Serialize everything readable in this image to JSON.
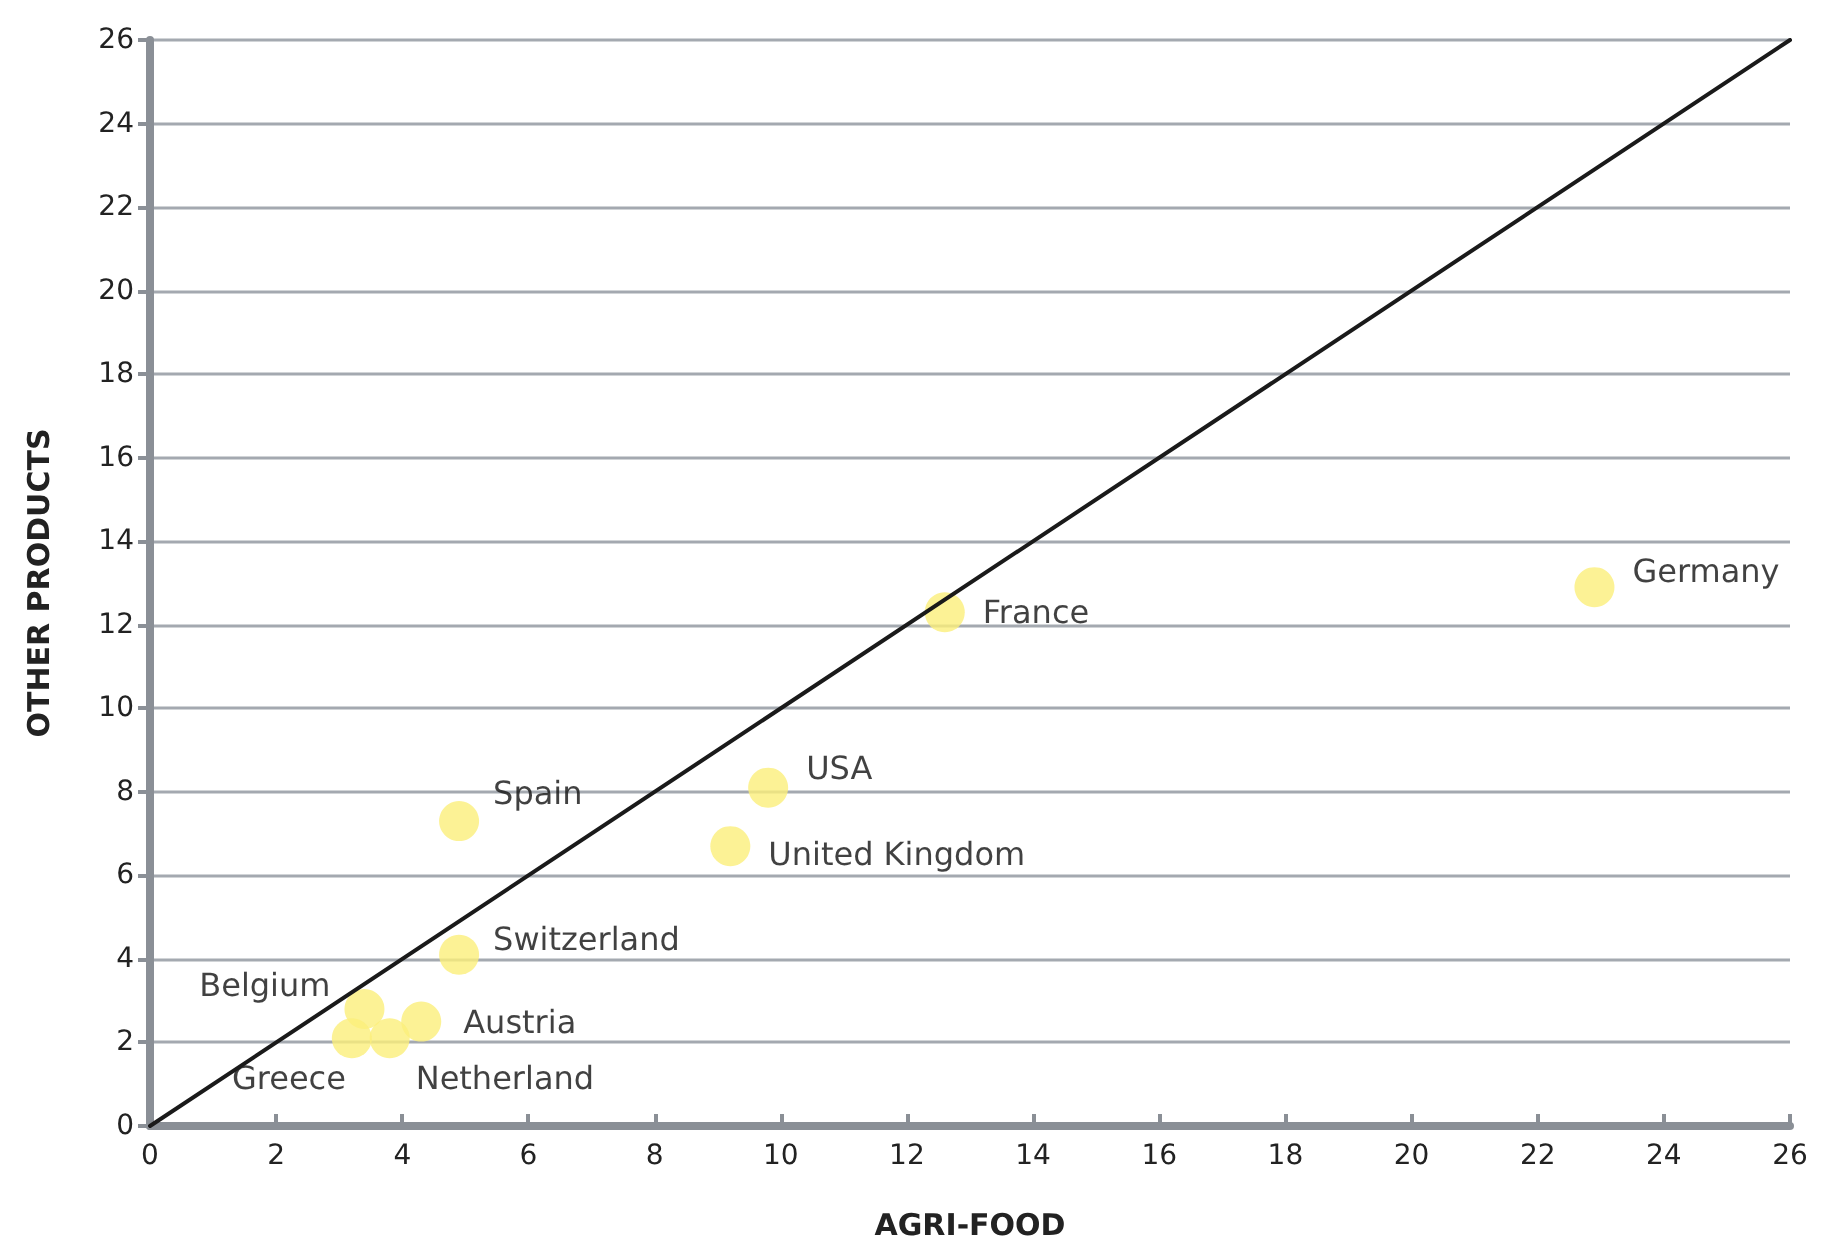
{
  "chart_data": {
    "type": "scatter",
    "xlabel": "AGRI-FOOD",
    "ylabel": "OTHER PRODUCTS",
    "xlim": [
      0,
      26
    ],
    "xticks": [
      0,
      2,
      4,
      6,
      8,
      10,
      12,
      14,
      16,
      18,
      20,
      22,
      24,
      26
    ],
    "ylim": [
      0,
      26
    ],
    "yticks": [
      0,
      2,
      4,
      6,
      8,
      10,
      12,
      14,
      16,
      18,
      20,
      22,
      24,
      26
    ],
    "grid": "y",
    "marker": "circle",
    "series": [
      {
        "color": "#fbef7a",
        "x": [
          22.9,
          12.6,
          9.8,
          9.2,
          4.9,
          4.9,
          3.4,
          4.3,
          3.8,
          3.2
        ],
        "values": [
          12.9,
          12.3,
          8.1,
          6.7,
          7.3,
          4.1,
          2.8,
          2.5,
          2.1,
          2.1
        ],
        "value_labels": [
          "Germany",
          "France",
          "USA",
          "United Kingdom",
          "Spain",
          "Switzerland",
          "Belgium",
          "Austria",
          "Netherland",
          "Greece"
        ]
      },
      {
        "type": "line",
        "color": "#1a1a1a",
        "x": [
          0,
          26
        ],
        "values": [
          0,
          26
        ],
        "line_style": "solid",
        "marker": "none"
      }
    ]
  }
}
